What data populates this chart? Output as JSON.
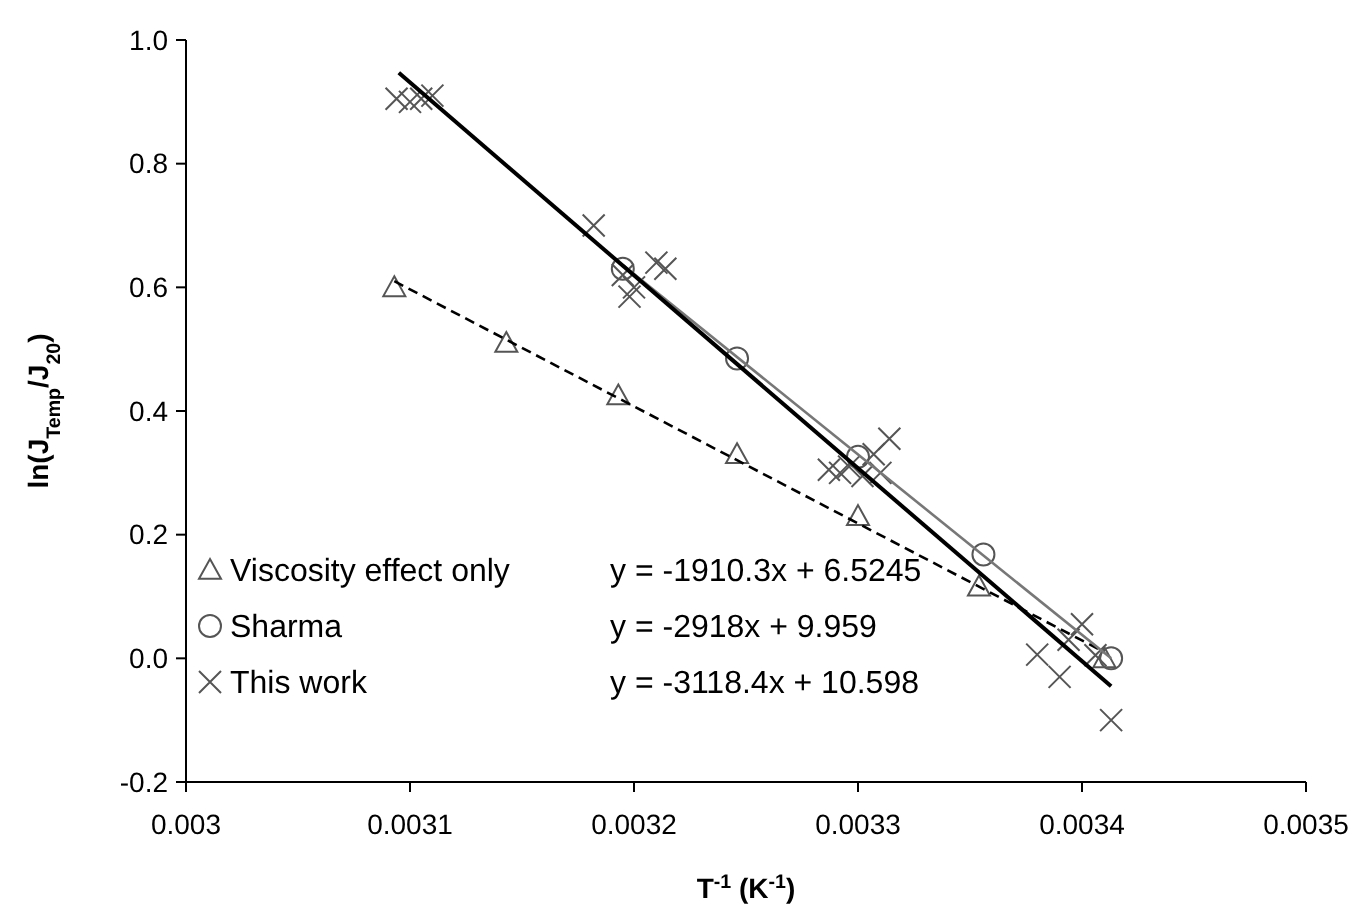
{
  "chart_data": {
    "type": "scatter",
    "xlabel": "T$^{-1}$ (K$^{-1}$)",
    "ylabel": "ln(J$_{Temp}$/J$_{20}$)",
    "xlim": [
      0.003,
      0.0035
    ],
    "xticks": [
      0.003,
      0.0031,
      0.0032,
      0.0033,
      0.0034,
      0.0035
    ],
    "ylim": [
      -0.2,
      1.0
    ],
    "yticks": [
      {
        "value": -0.2,
        "label": "-0.2"
      },
      {
        "value": 0,
        "label": "0.0"
      },
      {
        "value": 0.2,
        "label": "0.2"
      },
      {
        "value": 0.4,
        "label": "0.4"
      },
      {
        "value": 0.6,
        "label": "0.6"
      },
      {
        "value": 0.8,
        "label": "0.8"
      },
      {
        "value": 1,
        "label": "1.0"
      }
    ],
    "grid": false,
    "legend": "bottom left",
    "series": [
      {
        "name": "Viscosity effect only",
        "marker": "triangle",
        "color": "#555555",
        "x": [
          0.003093,
          0.003143,
          0.003193,
          0.003246,
          0.0033,
          0.003354,
          0.00341
        ],
        "values": [
          0.6,
          0.51,
          0.425,
          0.33,
          0.23,
          0.116,
          0.0
        ]
      },
      {
        "name": "Sharma",
        "marker": "circle",
        "color": "#555555",
        "x": [
          0.003195,
          0.003246,
          0.0033,
          0.003356,
          0.003413
        ],
        "values": [
          0.63,
          0.485,
          0.326,
          0.168,
          0.0
        ]
      },
      {
        "name": "This work",
        "marker": "cross",
        "color": "#555555",
        "x": [
          0.003094,
          0.0031,
          0.003105,
          0.00311,
          0.003182,
          0.003195,
          0.003198,
          0.0032,
          0.00321,
          0.003214,
          0.003287,
          0.003292,
          0.003296,
          0.003302,
          0.003307,
          0.003314,
          0.00331,
          0.00338,
          0.00339,
          0.003394,
          0.0034,
          0.003413,
          0.003406
        ],
        "values": [
          0.905,
          0.9,
          0.905,
          0.91,
          0.7,
          0.62,
          0.585,
          0.6,
          0.64,
          0.63,
          0.305,
          0.3,
          0.31,
          0.295,
          0.33,
          0.355,
          0.3,
          0.006,
          -0.03,
          0.03,
          0.055,
          -0.1,
          0.005
        ]
      },
      {
        "type": "line",
        "line_style": "dashed",
        "marker": "none",
        "color": "#000000",
        "x": [
          0.003093,
          0.00341
        ],
        "values": [
          0.61,
          0.01
        ]
      },
      {
        "type": "line",
        "line_style": "solid",
        "marker": "none",
        "color": "#777777",
        "x": [
          0.003195,
          0.003413
        ],
        "values": [
          0.636,
          0.0
        ]
      },
      {
        "type": "line",
        "line_style": "solid",
        "marker": "none",
        "color": "#000000",
        "x": [
          0.003095,
          0.003413
        ],
        "values": [
          0.947,
          -0.045
        ]
      }
    ],
    "annotations": [
      "y = -1910.3x + 6.5245",
      "y = -2918x + 9.959",
      "y = -3118.4x + 10.598"
    ]
  }
}
